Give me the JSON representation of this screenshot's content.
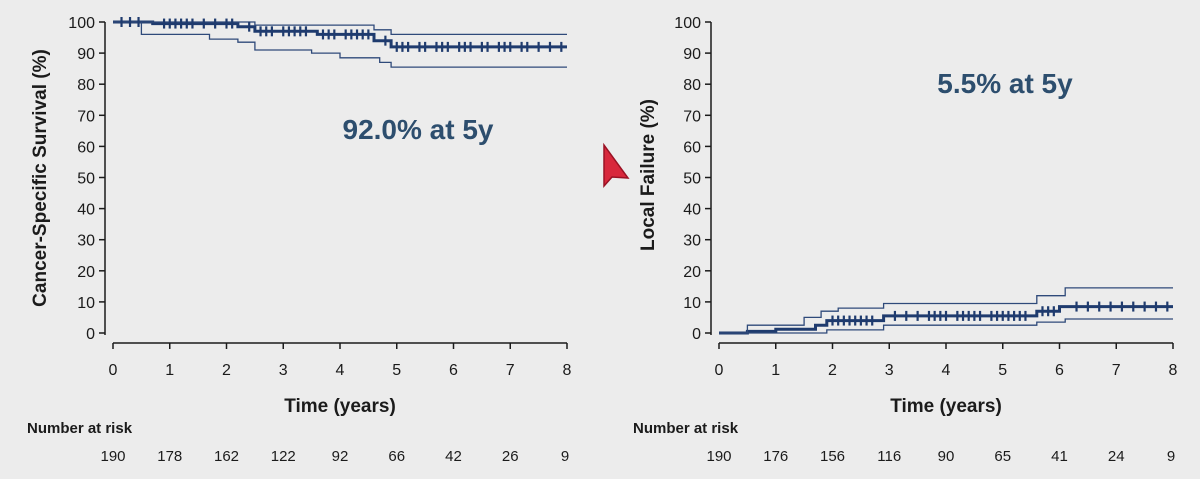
{
  "colors": {
    "curve": "#1f3b6e",
    "ci": "#2f4a7a",
    "axis": "#1b1b1b",
    "annotation": "#2d4e6e",
    "cursor": "#d8283c"
  },
  "icons": {
    "cursor": "red-pointer-arrow-icon"
  },
  "chart_data": [
    {
      "type": "line",
      "title": "",
      "xlabel": "Time (years)",
      "ylabel": "Cancer-Specific Survival (%)",
      "xlim": [
        0,
        8
      ],
      "ylim": [
        0,
        100
      ],
      "x_ticks": [
        "0",
        "1",
        "2",
        "3",
        "4",
        "5",
        "6",
        "7",
        "8"
      ],
      "y_ticks": [
        "0",
        "10",
        "20",
        "30",
        "40",
        "50",
        "60",
        "70",
        "80",
        "90",
        "100"
      ],
      "annotation": "92.0% at 5y",
      "grid": false,
      "series": [
        {
          "role": "estimate",
          "points": [
            [
              0,
              100
            ],
            [
              0.7,
              100
            ],
            [
              0.7,
              99.5
            ],
            [
              2.2,
              99.5
            ],
            [
              2.2,
              98.5
            ],
            [
              2.5,
              98.5
            ],
            [
              2.5,
              97
            ],
            [
              3.6,
              97
            ],
            [
              3.6,
              96
            ],
            [
              4.6,
              96
            ],
            [
              4.6,
              94
            ],
            [
              4.9,
              94
            ],
            [
              4.9,
              92
            ],
            [
              8,
              92
            ]
          ]
        },
        {
          "role": "ci_upper",
          "points": [
            [
              0,
              100
            ],
            [
              2.5,
              100
            ],
            [
              2.5,
              99
            ],
            [
              4.6,
              99
            ],
            [
              4.6,
              97.5
            ],
            [
              4.9,
              97.5
            ],
            [
              4.9,
              96
            ],
            [
              8,
              96
            ]
          ]
        },
        {
          "role": "ci_lower",
          "points": [
            [
              0,
              100
            ],
            [
              0.5,
              100
            ],
            [
              0.5,
              96
            ],
            [
              1.7,
              96
            ],
            [
              1.7,
              94.5
            ],
            [
              2.2,
              94.5
            ],
            [
              2.2,
              93.5
            ],
            [
              2.5,
              93.5
            ],
            [
              2.5,
              91
            ],
            [
              3.5,
              91
            ],
            [
              3.5,
              90
            ],
            [
              4.0,
              90
            ],
            [
              4.0,
              88.5
            ],
            [
              4.7,
              88.5
            ],
            [
              4.7,
              87
            ],
            [
              4.9,
              87
            ],
            [
              4.9,
              85.5
            ],
            [
              8,
              85.5
            ]
          ]
        }
      ],
      "censor_marks": [
        0.15,
        0.3,
        0.45,
        0.9,
        1.0,
        1.1,
        1.2,
        1.3,
        1.4,
        1.6,
        1.8,
        2.0,
        2.1,
        2.4,
        2.6,
        2.7,
        2.8,
        3.0,
        3.1,
        3.2,
        3.3,
        3.4,
        3.7,
        3.8,
        3.9,
        4.1,
        4.2,
        4.3,
        4.4,
        4.5,
        4.8,
        5.0,
        5.1,
        5.2,
        5.4,
        5.5,
        5.7,
        5.8,
        5.9,
        6.1,
        6.2,
        6.3,
        6.5,
        6.6,
        6.8,
        6.9,
        7.0,
        7.2,
        7.3,
        7.5,
        7.7,
        7.9
      ],
      "risk_table": {
        "title": "Number at risk",
        "counts": [
          "190",
          "178",
          "162",
          "122",
          "92",
          "66",
          "42",
          "26",
          "9"
        ]
      }
    },
    {
      "type": "line",
      "title": "",
      "xlabel": "Time (years)",
      "ylabel": "Local Failure (%)",
      "xlim": [
        0,
        8
      ],
      "ylim": [
        0,
        100
      ],
      "x_ticks": [
        "0",
        "1",
        "2",
        "3",
        "4",
        "5",
        "6",
        "7",
        "8"
      ],
      "y_ticks": [
        "0",
        "10",
        "20",
        "30",
        "40",
        "50",
        "60",
        "70",
        "80",
        "90",
        "100"
      ],
      "annotation": "5.5% at 5y",
      "grid": false,
      "series": [
        {
          "role": "estimate",
          "points": [
            [
              0,
              0
            ],
            [
              0.5,
              0
            ],
            [
              0.5,
              0.5
            ],
            [
              1.0,
              0.5
            ],
            [
              1.0,
              1.2
            ],
            [
              1.7,
              1.2
            ],
            [
              1.7,
              2.5
            ],
            [
              1.9,
              2.5
            ],
            [
              1.9,
              4
            ],
            [
              2.9,
              4
            ],
            [
              2.9,
              5.5
            ],
            [
              5.6,
              5.5
            ],
            [
              5.6,
              7
            ],
            [
              6.0,
              7
            ],
            [
              6.0,
              8.5
            ],
            [
              8,
              8.5
            ]
          ]
        },
        {
          "role": "ci_upper",
          "points": [
            [
              0,
              0
            ],
            [
              0.5,
              0
            ],
            [
              0.5,
              2.5
            ],
            [
              1.5,
              2.5
            ],
            [
              1.5,
              5
            ],
            [
              1.8,
              5
            ],
            [
              1.8,
              7
            ],
            [
              2.1,
              7
            ],
            [
              2.1,
              8
            ],
            [
              2.9,
              8
            ],
            [
              2.9,
              9.5
            ],
            [
              5.6,
              9.5
            ],
            [
              5.6,
              12
            ],
            [
              6.1,
              12
            ],
            [
              6.1,
              14.5
            ],
            [
              8,
              14.5
            ]
          ]
        },
        {
          "role": "ci_lower",
          "points": [
            [
              0,
              0
            ],
            [
              1.9,
              0
            ],
            [
              1.9,
              1
            ],
            [
              2.9,
              1
            ],
            [
              2.9,
              2.5
            ],
            [
              5.6,
              2.5
            ],
            [
              5.6,
              3.5
            ],
            [
              6.1,
              3.5
            ],
            [
              6.1,
              4.5
            ],
            [
              8,
              4.5
            ]
          ]
        }
      ],
      "censor_marks": [
        2.0,
        2.1,
        2.2,
        2.3,
        2.4,
        2.5,
        2.6,
        2.7,
        3.1,
        3.3,
        3.5,
        3.7,
        3.8,
        3.9,
        4.0,
        4.2,
        4.3,
        4.4,
        4.5,
        4.6,
        4.8,
        4.9,
        5.0,
        5.1,
        5.2,
        5.3,
        5.4,
        5.7,
        5.8,
        5.9,
        6.3,
        6.5,
        6.7,
        6.9,
        7.1,
        7.3,
        7.5,
        7.7,
        7.9
      ],
      "risk_table": {
        "title": "Number at risk",
        "counts": [
          "190",
          "176",
          "156",
          "116",
          "90",
          "65",
          "41",
          "24",
          "9"
        ]
      }
    }
  ]
}
